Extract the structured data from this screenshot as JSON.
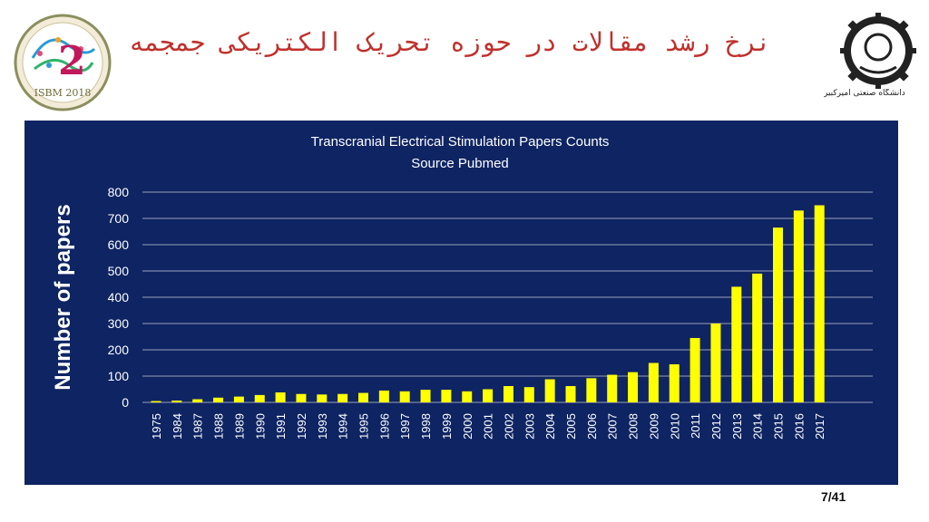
{
  "slide": {
    "title": "نرخ رشد مقالات در حوزه تحریک الکتریکی جمجمه",
    "university_name": "دانشگاه صنعتی امیرکبیر",
    "conference_logo_text": "ISBM 2018",
    "page_number": "7/41"
  },
  "colors": {
    "title": "#c0302b",
    "panel_background": "#0e2463",
    "bar": "#ffff00",
    "text": "#ffffff"
  },
  "chart_data": {
    "type": "bar",
    "title": "Transcranial Electrical Stimulation Papers Counts",
    "subtitle": "Source Pubmed",
    "ylabel": "Number of papers",
    "xlabel": "",
    "ylim": [
      0,
      800
    ],
    "yticks": [
      0,
      100,
      200,
      300,
      400,
      500,
      600,
      700,
      800
    ],
    "grid": true,
    "categories": [
      "1975",
      "1984",
      "1987",
      "1988",
      "1989",
      "1990",
      "1991",
      "1992",
      "1993",
      "1994",
      "1995",
      "1996",
      "1997",
      "1998",
      "1999",
      "2000",
      "2001",
      "2002",
      "2003",
      "2004",
      "2005",
      "2006",
      "2007",
      "2008",
      "2009",
      "2010",
      "2011",
      "2012",
      "2013",
      "2014",
      "2015",
      "2016",
      "2017"
    ],
    "values": [
      5,
      7,
      12,
      18,
      22,
      28,
      38,
      32,
      30,
      32,
      36,
      45,
      42,
      48,
      48,
      42,
      50,
      62,
      58,
      88,
      62,
      92,
      105,
      115,
      150,
      145,
      245,
      300,
      440,
      490,
      665,
      730,
      750
    ]
  }
}
